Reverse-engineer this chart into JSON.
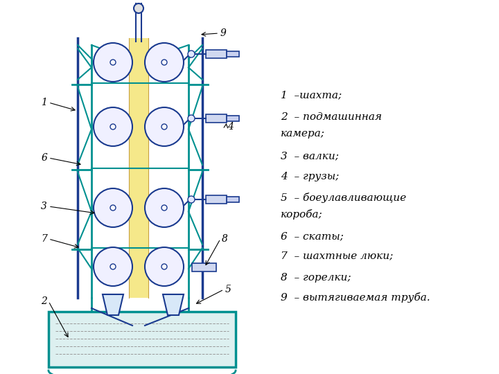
{
  "bg_color": "#ffffff",
  "blue": "#1a3a8f",
  "teal": "#009090",
  "orange_center": "#e8c060",
  "text_color": "#000000",
  "legend_lines": [
    "1  –шахта;",
    "2  – подмашинная",
    "камера;",
    "3  – валки;",
    "4  – грузы;",
    "5  – боеулавливающие",
    "короба;",
    "6  – скаты;",
    "7  – шахтные люки;",
    "8  – горелки;",
    "9  – вытягиваемая труба."
  ],
  "figsize": [
    7.2,
    5.4
  ],
  "dpi": 100
}
